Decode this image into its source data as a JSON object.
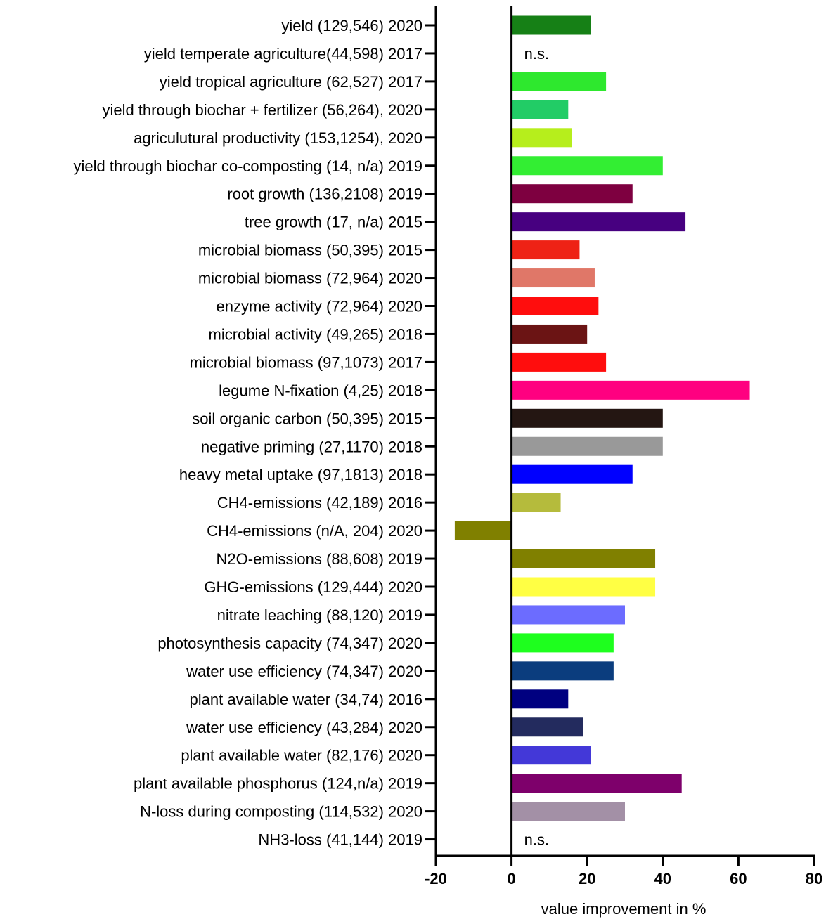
{
  "chart_data": {
    "type": "bar",
    "orientation": "horizontal",
    "xlabel": "value improvement in %",
    "ylabel": "",
    "xlim": [
      -20,
      80
    ],
    "xticks": [
      -20,
      0,
      20,
      40,
      60,
      80
    ],
    "grid": false,
    "legend": "none",
    "categories": [
      "yield (129,546) 2020",
      "yield temperate agriculture(44,598) 2017",
      "yield tropical agriculture (62,527) 2017",
      "yield through biochar + fertilizer (56,264), 2020",
      "agriculutural productivity (153,1254), 2020",
      "yield through biochar co-composting (14, n/a) 2019",
      "root growth (136,2108) 2019",
      "tree growth (17, n/a) 2015",
      "microbial biomass (50,395) 2015",
      "microbial biomass (72,964) 2020",
      "enzyme activity (72,964) 2020",
      "microbial activity (49,265) 2018",
      "microbial biomass (97,1073) 2017",
      "legume N-fixation (4,25) 2018",
      "soil organic carbon (50,395) 2015",
      "negative priming (27,1170) 2018",
      "heavy metal uptake (97,1813) 2018",
      "CH4-emissions (42,189) 2016",
      "CH4-emissions (n/A, 204) 2020",
      "N2O-emissions (88,608) 2019",
      "GHG-emissions (129,444) 2020",
      "nitrate leaching (88,120) 2019",
      "photosynthesis capacity (74,347) 2020",
      "water use efficiency (74,347) 2020",
      "plant available water (34,74) 2016",
      "water use efficiency (43,284) 2020",
      "plant available water (82,176) 2020",
      "plant available phosphorus (124,n/a) 2019",
      "N-loss during composting (114,532) 2020",
      "NH3-loss (41,144) 2019"
    ],
    "values": [
      21,
      null,
      25,
      15,
      16,
      40,
      32,
      46,
      18,
      22,
      23,
      20,
      25,
      63,
      40,
      40,
      32,
      13,
      -15,
      38,
      38,
      30,
      27,
      27,
      15,
      19,
      21,
      45,
      30,
      null
    ],
    "colors": [
      "#168016",
      null,
      "#2ee82e",
      "#22cc66",
      "#b6ee1c",
      "#33ee33",
      "#7e0040",
      "#470080",
      "#ee2215",
      "#e07768",
      "#ff0d0d",
      "#6b1414",
      "#ff0d0d",
      "#ff0080",
      "#241612",
      "#999999",
      "#0000ff",
      "#b5bb3c",
      "#808000",
      "#808000",
      "#ffff44",
      "#6c6cff",
      "#1eff1e",
      "#0b3d7e",
      "#000080",
      "#232b5e",
      "#4338d8",
      "#7e006b",
      "#a390a6",
      null
    ],
    "annotations": [
      "",
      "n.s.",
      "",
      "",
      "",
      "",
      "",
      "",
      "",
      "",
      "",
      "",
      "",
      "",
      "",
      "",
      "",
      "",
      "",
      "",
      "",
      "",
      "",
      "",
      "",
      "",
      "",
      "",
      "",
      "n.s."
    ]
  }
}
